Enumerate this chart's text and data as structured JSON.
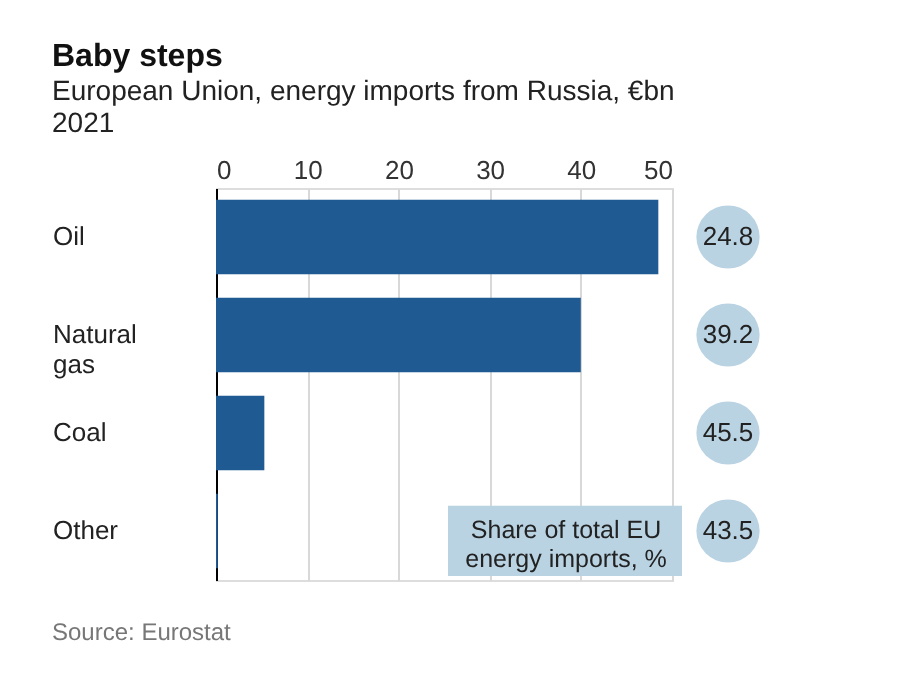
{
  "chart_data": {
    "type": "bar",
    "orientation": "horizontal",
    "title": "Baby steps",
    "subtitle": "European Union, energy imports from Russia, €bn\n2021",
    "categories": [
      "Oil",
      "Natural gas",
      "Coal",
      "Other"
    ],
    "values": [
      48.5,
      40,
      5.3,
      0.2
    ],
    "color": "#1f5a93",
    "xlim": [
      0,
      50
    ],
    "xticks": [
      0,
      10,
      20,
      30,
      40,
      50
    ],
    "grid": "x",
    "annotations": [
      "24.8",
      "39.2",
      "45.5",
      "43.5",
      "Share of total EU\nenergy imports, %",
      "Source: Eurostat"
    ]
  }
}
